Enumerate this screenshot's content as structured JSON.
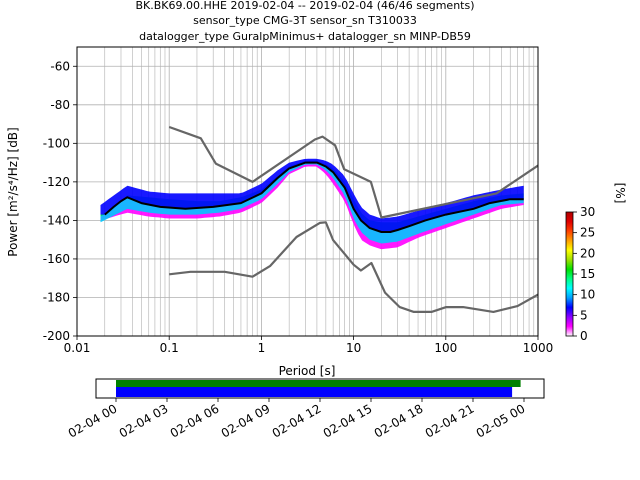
{
  "title_lines": [
    "BK.BK69.00.HHE   2019-02-04 -- 2019-02-04  (46/46 segments)",
    "sensor_type CMG-3T sensor_sn T310033",
    "datalogger_type GuralpMinimus+ datalogger_sn MINP-DB59"
  ],
  "colorbar": {
    "label": "[%]",
    "ticks": [
      "0",
      "5",
      "10",
      "15",
      "20",
      "25",
      "30"
    ],
    "range": [
      0,
      30
    ],
    "colors": [
      "#ffffff",
      "#ff00ff",
      "#8a00ff",
      "#0000ff",
      "#00a0ff",
      "#00ffff",
      "#00ff80",
      "#00e000",
      "#a0e000",
      "#ffff00",
      "#ffa000",
      "#ff4000",
      "#e00000",
      "#b00000"
    ]
  },
  "chart_data": [
    {
      "type": "line",
      "xlabel": "Period [s]",
      "ylabel": "Power [m²/s⁴/Hz] [dB]",
      "xscale": "log",
      "xlim": [
        0.01,
        1000
      ],
      "ylim": [
        -200,
        -50
      ],
      "grid": true,
      "xticks": [
        "0.01",
        "0.1",
        "1",
        "10",
        "100",
        "1000"
      ],
      "yticks": [
        "-200",
        "-180",
        "-160",
        "-140",
        "-120",
        "-100",
        "-80",
        "-60"
      ],
      "series": [
        {
          "role": "noise-model-high",
          "color": "#666666",
          "x": [
            0.1,
            0.22,
            0.32,
            0.8,
            3.8,
            4.6,
            6.3,
            7.9,
            15.4,
            20,
            354.8,
            1000
          ],
          "y": [
            -91.5,
            -97.4,
            -110.5,
            -120,
            -98,
            -96.5,
            -101,
            -113.5,
            -120,
            -138.5,
            -126,
            -111.5
          ]
        },
        {
          "role": "noise-model-low",
          "color": "#666666",
          "x": [
            0.1,
            0.17,
            0.4,
            0.8,
            1.24,
            2.4,
            4.3,
            5.0,
            6.0,
            10.0,
            12.0,
            15.6,
            21.9,
            31.6,
            45.0,
            70.0,
            101.0,
            154.0,
            328.0,
            600.0,
            1000.0
          ],
          "y": [
            -168,
            -166.7,
            -166.7,
            -169.2,
            -163.7,
            -148.6,
            -141.3,
            -141,
            -150.2,
            -163,
            -166,
            -162.1,
            -177.5,
            -185,
            -187.5,
            -187.5,
            -185,
            -185,
            -187.5,
            -184.5,
            -178.5
          ]
        },
        {
          "role": "mean",
          "color": "#000000",
          "x": [
            0.02,
            0.025,
            0.03,
            0.035,
            0.05,
            0.08,
            0.15,
            0.3,
            0.6,
            1,
            1.5,
            2,
            3,
            4,
            5,
            6,
            8,
            10,
            12,
            15,
            20,
            25,
            30,
            40,
            60,
            100,
            200,
            300,
            500,
            700
          ],
          "y": [
            -137,
            -133,
            -130,
            -128,
            -131,
            -133,
            -134,
            -133,
            -131,
            -126,
            -118,
            -113,
            -110,
            -110,
            -112,
            -115,
            -123,
            -134,
            -140,
            -144,
            -146,
            -146,
            -145,
            -143,
            -140,
            -137,
            -134,
            -131,
            -129,
            -129
          ]
        }
      ],
      "density": [
        {
          "x": [
            0.018,
            0.035,
            0.06,
            0.1,
            0.2,
            0.35,
            0.6,
            1,
            1.5,
            2,
            3,
            4,
            5,
            6,
            8,
            10,
            12,
            15,
            20,
            30,
            50,
            100,
            200,
            400,
            700
          ],
          "y": [
            -138,
            -127,
            -128,
            -129,
            -130,
            -130,
            -128,
            -124,
            -117,
            -112,
            -109,
            -109,
            -111,
            -113,
            -120,
            -129,
            -136,
            -140,
            -141,
            -141,
            -138,
            -134,
            -130,
            -127,
            -126
          ]
        },
        {
          "x": [
            0.018,
            0.035,
            0.06,
            0.1,
            0.2,
            0.35,
            0.6,
            1,
            1.5,
            2,
            3,
            4,
            5,
            6,
            8,
            10,
            12,
            15,
            20,
            30,
            50,
            100,
            200,
            400,
            700
          ],
          "y": [
            -132,
            -122,
            -125,
            -126,
            -126,
            -126,
            -126,
            -121,
            -114,
            -110,
            -108,
            -108,
            -109,
            -111,
            -117,
            -126,
            -133,
            -137,
            -139,
            -138,
            -135,
            -131,
            -127,
            -124,
            -122
          ]
        },
        {
          "x": [
            0.018,
            0.035,
            0.06,
            0.1,
            0.2,
            0.35,
            0.6,
            1,
            1.5,
            2,
            3,
            4,
            5,
            6,
            8,
            10,
            12,
            15,
            20,
            30,
            50,
            100,
            200,
            400,
            700
          ],
          "y": [
            -141,
            -134,
            -136,
            -137,
            -137,
            -136,
            -134,
            -129,
            -121,
            -115,
            -111,
            -111,
            -114,
            -118,
            -127,
            -139,
            -146,
            -150,
            -152,
            -151,
            -147,
            -142,
            -137,
            -132,
            -131
          ]
        },
        {
          "x": [
            0.018,
            0.035,
            0.06,
            0.1,
            0.2,
            0.35,
            0.6,
            1,
            1.5,
            2,
            3,
            4,
            5,
            6,
            8,
            10,
            12,
            15,
            20,
            30,
            50,
            100,
            200,
            400,
            700
          ],
          "y": [
            -140,
            -136,
            -138,
            -139,
            -139,
            -138,
            -136,
            -131,
            -123,
            -116,
            -112,
            -112,
            -116,
            -121,
            -130,
            -142,
            -150,
            -153,
            -155,
            -154,
            -149,
            -144,
            -139,
            -134,
            -132
          ]
        }
      ]
    },
    {
      "type": "timeline",
      "xticks": [
        "02-04 00",
        "02-04 03",
        "02-04 06",
        "02-04 09",
        "02-04 12",
        "02-04 15",
        "02-04 18",
        "02-04 21",
        "02-05 00"
      ],
      "bars": [
        {
          "role": "data",
          "color": "#008000",
          "start_hour": 0.0,
          "end_hour": 23.8
        },
        {
          "role": "processed",
          "color": "#0000ff",
          "start_hour": 0.0,
          "end_hour": 23.3
        }
      ]
    }
  ]
}
